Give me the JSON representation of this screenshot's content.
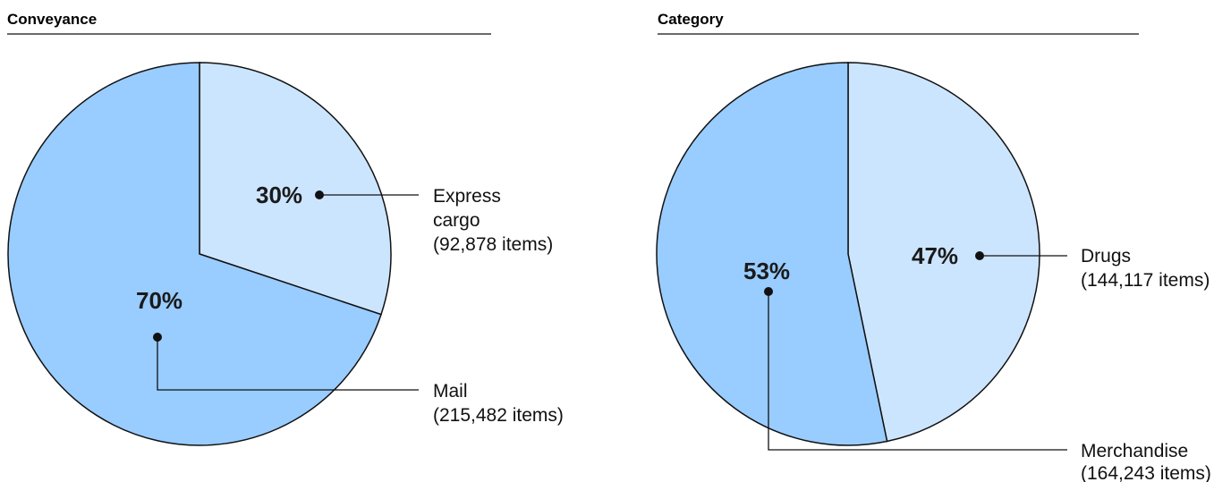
{
  "colors": {
    "major": "#99ccff",
    "minor": "#cce5ff",
    "stroke": "#111111",
    "text": "#111111"
  },
  "chart_data": [
    {
      "type": "pie",
      "title": "Conveyance",
      "slices": [
        {
          "label": "Express cargo",
          "label_lines": [
            "Express",
            "cargo"
          ],
          "value": 92878,
          "items_text": "(92,878 items)",
          "percent_text": "30%",
          "color": "#cce5ff"
        },
        {
          "label": "Mail",
          "label_lines": [
            "Mail"
          ],
          "value": 215482,
          "items_text": "(215,482 items)",
          "percent_text": "70%",
          "color": "#99ccff"
        }
      ]
    },
    {
      "type": "pie",
      "title": "Category",
      "slices": [
        {
          "label": "Drugs",
          "label_lines": [
            "Drugs"
          ],
          "value": 144117,
          "items_text": "(144,117 items)",
          "percent_text": "47%",
          "color": "#cce5ff"
        },
        {
          "label": "Merchandise",
          "label_lines": [
            "Merchandise"
          ],
          "value": 164243,
          "items_text": "(164,243 items)",
          "percent_text": "53%",
          "color": "#99ccff"
        }
      ]
    }
  ]
}
